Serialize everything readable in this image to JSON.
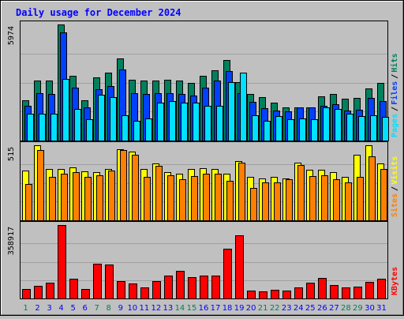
{
  "chart_data": {
    "type": "bar",
    "title": "Daily usage for December 2024",
    "colors": {
      "background": "#c0c0c0",
      "plot_background": "#c0c0c0",
      "grid": "#a0a0a0",
      "title": "#0000ff",
      "hits": "#00805c",
      "files": "#0040ff",
      "pages": "#00e0ff",
      "visits": "#ffff00",
      "sites": "#ff8000",
      "kbytes": "#ff0000",
      "weekend_label": "#00805c",
      "weekday_label": "#0000ff"
    },
    "days": [
      "1",
      "2",
      "3",
      "4",
      "5",
      "6",
      "7",
      "8",
      "9",
      "10",
      "11",
      "12",
      "13",
      "14",
      "15",
      "16",
      "17",
      "18",
      "19",
      "20",
      "21",
      "22",
      "23",
      "24",
      "25",
      "26",
      "27",
      "28",
      "29",
      "30",
      "31"
    ],
    "weekend_days": [
      "1",
      "7",
      "8",
      "14",
      "15",
      "21",
      "22",
      "28",
      "29"
    ],
    "top_panel": {
      "ymax_label": "5974",
      "ymax": 5974,
      "legend": [
        "Pages",
        "/",
        "Files",
        "/",
        "Hits"
      ],
      "series": [
        {
          "name": "Hits",
          "values": [
            2060,
            3070,
            3070,
            5974,
            3320,
            2080,
            3250,
            3480,
            4230,
            3110,
            3070,
            3070,
            3110,
            3070,
            2950,
            3320,
            3610,
            4150,
            3020,
            2400,
            2230,
            1940,
            1690,
            1710,
            1710,
            2280,
            2400,
            2150,
            2190,
            2690,
            2980
          ]
        },
        {
          "name": "Files",
          "values": [
            1770,
            2440,
            2400,
            5580,
            2730,
            1690,
            2650,
            2810,
            3640,
            2440,
            2400,
            2440,
            2440,
            2400,
            2310,
            2730,
            3070,
            3570,
            2440,
            2000,
            1650,
            1530,
            1490,
            1690,
            1690,
            1800,
            1880,
            1550,
            1570,
            2190,
            2020
          ]
        },
        {
          "name": "Pages",
          "values": [
            1400,
            1400,
            1400,
            3150,
            1610,
            1100,
            2350,
            2230,
            1300,
            1000,
            1130,
            1960,
            2020,
            1940,
            1940,
            1800,
            1800,
            2990,
            3510,
            1300,
            1020,
            1280,
            1080,
            1120,
            1100,
            1700,
            1620,
            1400,
            1240,
            1300,
            1220
          ]
        }
      ]
    },
    "middle_panel": {
      "ymax_label": "515",
      "ymax": 515,
      "legend": [
        "Sites",
        "/",
        "Visits"
      ],
      "series": [
        {
          "name": "Visits",
          "values": [
            340,
            515,
            355,
            350,
            365,
            335,
            330,
            350,
            490,
            470,
            355,
            390,
            330,
            320,
            355,
            360,
            350,
            320,
            405,
            300,
            290,
            300,
            285,
            395,
            345,
            345,
            330,
            300,
            450,
            515,
            390
          ]
        },
        {
          "name": "Sites",
          "values": [
            250,
            485,
            300,
            320,
            330,
            300,
            310,
            340,
            480,
            450,
            300,
            375,
            310,
            280,
            305,
            320,
            320,
            270,
            395,
            220,
            260,
            260,
            280,
            380,
            305,
            310,
            280,
            260,
            300,
            440,
            350
          ]
        }
      ]
    },
    "bottom_panel": {
      "ymax_label": "358917",
      "ymax": 358917,
      "legend": [
        "KBytes"
      ],
      "series": [
        {
          "name": "KBytes",
          "values": [
            48000,
            62000,
            76000,
            358917,
            96000,
            45000,
            170000,
            165000,
            84000,
            72000,
            54000,
            84000,
            110000,
            136000,
            104000,
            110000,
            110000,
            245000,
            310000,
            39000,
            33000,
            41000,
            38000,
            54000,
            76000,
            100000,
            67000,
            54000,
            56000,
            80000,
            95000
          ]
        }
      ]
    }
  }
}
